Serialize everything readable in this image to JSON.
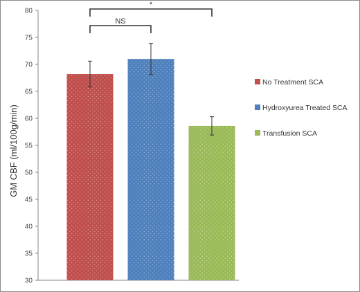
{
  "chart_data": {
    "type": "bar",
    "ylabel": "GM CBF (ml/100g/min)",
    "xlabel": "",
    "ylim": [
      30,
      80
    ],
    "yticks": [
      30,
      35,
      40,
      45,
      50,
      55,
      60,
      65,
      70,
      75,
      80
    ],
    "grid": false,
    "legend_position": "right",
    "series": [
      {
        "name": "No Treatment SCA",
        "value": 68.2,
        "error": 2.4,
        "color": "#c0504d"
      },
      {
        "name": "Hydroxyurea Treated SCA",
        "value": 71.0,
        "error": 2.9,
        "color": "#4f81bd"
      },
      {
        "name": "Transfusion SCA",
        "value": 58.6,
        "error": 1.7,
        "color": "#9bbb59"
      }
    ],
    "annotations": [
      {
        "label": "NS",
        "from": 0,
        "to": 1
      },
      {
        "label": "*",
        "from": 0,
        "to": 2
      }
    ]
  }
}
